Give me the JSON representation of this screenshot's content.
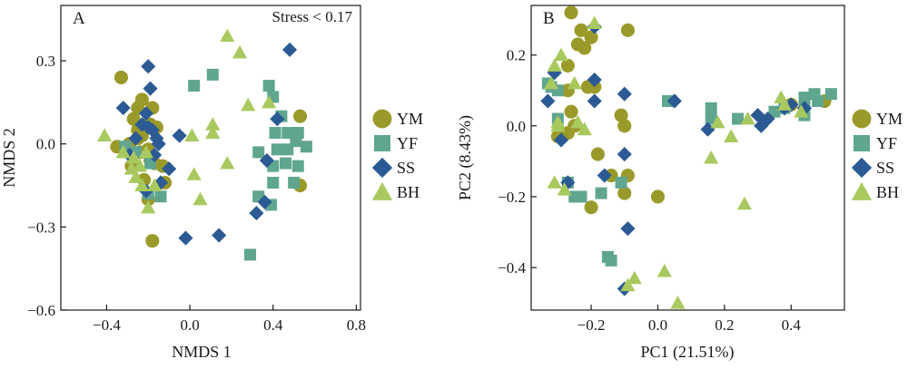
{
  "colors": {
    "YM": "#9a9a2a",
    "YF": "#5fa58f",
    "SS": "#2c5a94",
    "BH": "#a8c95e"
  },
  "legend": [
    "YM",
    "YF",
    "SS",
    "BH"
  ],
  "chart_data": [
    {
      "type": "scatter",
      "panel_label": "A",
      "annotation": "Stress < 0.17",
      "xlabel": "NMDS 1",
      "ylabel": "NMDS 2",
      "xlim": [
        -0.62,
        0.82
      ],
      "ylim": [
        -0.6,
        0.5
      ],
      "xticks": [
        -0.4,
        0.0,
        0.4,
        0.8
      ],
      "xtick_labels": [
        "−0.4",
        "0.0",
        "0.4",
        "0.8"
      ],
      "yticks": [
        -0.6,
        -0.3,
        0.0,
        0.3
      ],
      "ytick_labels": [
        "−0.6",
        "−0.3",
        "0.0",
        "0.3"
      ],
      "legend_position": "right",
      "series": [
        {
          "name": "YM",
          "marker": "circle",
          "points": [
            [
              -0.33,
              0.24
            ],
            [
              -0.23,
              0.16
            ],
            [
              -0.18,
              0.13
            ],
            [
              -0.27,
              0.09
            ],
            [
              -0.25,
              0.05
            ],
            [
              -0.21,
              0.07
            ],
            [
              -0.19,
              0.07
            ],
            [
              -0.16,
              0.06
            ],
            [
              -0.23,
              0.03
            ],
            [
              -0.25,
              0.02
            ],
            [
              -0.29,
              0.0
            ],
            [
              -0.35,
              -0.01
            ],
            [
              -0.24,
              -0.03
            ],
            [
              -0.2,
              -0.02
            ],
            [
              -0.17,
              -0.07
            ],
            [
              -0.13,
              -0.08
            ],
            [
              -0.19,
              -0.06
            ],
            [
              -0.28,
              -0.08
            ],
            [
              -0.22,
              -0.13
            ],
            [
              -0.12,
              -0.14
            ],
            [
              -0.2,
              -0.2
            ],
            [
              -0.18,
              -0.35
            ],
            [
              0.53,
              0.1
            ],
            [
              0.53,
              -0.15
            ],
            [
              -0.25,
              0.13
            ]
          ]
        },
        {
          "name": "YF",
          "marker": "square",
          "points": [
            [
              0.02,
              0.21
            ],
            [
              0.11,
              0.25
            ],
            [
              0.38,
              0.21
            ],
            [
              0.4,
              0.17
            ],
            [
              0.44,
              0.1
            ],
            [
              0.41,
              0.04
            ],
            [
              0.47,
              0.04
            ],
            [
              0.52,
              0.04
            ],
            [
              0.51,
              0.01
            ],
            [
              0.56,
              -0.01
            ],
            [
              0.42,
              -0.02
            ],
            [
              0.47,
              -0.02
            ],
            [
              0.33,
              -0.03
            ],
            [
              0.4,
              -0.08
            ],
            [
              0.46,
              -0.07
            ],
            [
              0.52,
              -0.08
            ],
            [
              0.5,
              -0.14
            ],
            [
              0.4,
              -0.14
            ],
            [
              0.33,
              -0.19
            ],
            [
              0.39,
              -0.22
            ],
            [
              0.29,
              -0.4
            ],
            [
              -0.31,
              -0.01
            ],
            [
              -0.26,
              -0.03
            ],
            [
              -0.19,
              -0.07
            ],
            [
              -0.2,
              -0.18
            ],
            [
              -0.14,
              -0.19
            ]
          ]
        },
        {
          "name": "SS",
          "marker": "diamond",
          "points": [
            [
              -0.32,
              0.13
            ],
            [
              -0.2,
              0.28
            ],
            [
              -0.19,
              0.2
            ],
            [
              -0.21,
              0.11
            ],
            [
              -0.23,
              0.07
            ],
            [
              -0.2,
              0.06
            ],
            [
              -0.18,
              0.05
            ],
            [
              -0.16,
              0.02
            ],
            [
              -0.05,
              0.03
            ],
            [
              -0.29,
              -0.04
            ],
            [
              -0.14,
              -0.14
            ],
            [
              -0.15,
              0.0
            ],
            [
              -0.17,
              -0.04
            ],
            [
              -0.1,
              -0.09
            ],
            [
              -0.21,
              -0.17
            ],
            [
              0.48,
              0.34
            ],
            [
              0.42,
              0.09
            ],
            [
              0.37,
              -0.06
            ],
            [
              0.36,
              -0.21
            ],
            [
              0.32,
              -0.25
            ],
            [
              -0.02,
              -0.34
            ],
            [
              0.14,
              -0.33
            ],
            [
              -0.26,
              0.02
            ]
          ]
        },
        {
          "name": "BH",
          "marker": "triangle",
          "points": [
            [
              0.18,
              0.39
            ],
            [
              0.24,
              0.33
            ],
            [
              0.28,
              0.14
            ],
            [
              0.38,
              0.15
            ],
            [
              -0.41,
              0.03
            ],
            [
              -0.32,
              -0.03
            ],
            [
              -0.27,
              -0.05
            ],
            [
              -0.21,
              -0.03
            ],
            [
              -0.24,
              -0.08
            ],
            [
              -0.28,
              -0.09
            ],
            [
              -0.26,
              -0.12
            ],
            [
              -0.23,
              -0.15
            ],
            [
              -0.17,
              -0.15
            ],
            [
              -0.2,
              -0.23
            ],
            [
              0.05,
              -0.2
            ],
            [
              0.02,
              -0.11
            ],
            [
              0.11,
              0.07
            ],
            [
              0.11,
              0.04
            ],
            [
              0.18,
              -0.07
            ],
            [
              0.01,
              0.03
            ]
          ]
        }
      ]
    },
    {
      "type": "scatter",
      "panel_label": "B",
      "xlabel": "PC1 (21.51%)",
      "ylabel": "PC2 (8.43%)",
      "xlim": [
        -0.38,
        0.56
      ],
      "ylim": [
        -0.52,
        0.34
      ],
      "xticks": [
        -0.2,
        0.0,
        0.2,
        0.4
      ],
      "xtick_labels": [
        "−0.2",
        "0.0",
        "0.2",
        "0.4"
      ],
      "yticks": [
        -0.4,
        -0.2,
        0.0,
        0.2
      ],
      "ytick_labels": [
        "−0.4",
        "−0.2",
        "0.0",
        "0.2"
      ],
      "legend_position": "right",
      "series": [
        {
          "name": "YM",
          "marker": "circle",
          "points": [
            [
              -0.26,
              0.32
            ],
            [
              -0.23,
              0.27
            ],
            [
              -0.24,
              0.23
            ],
            [
              -0.27,
              0.17
            ],
            [
              -0.22,
              0.22
            ],
            [
              -0.2,
              0.25
            ],
            [
              -0.09,
              0.27
            ],
            [
              -0.19,
              0.11
            ],
            [
              -0.21,
              0.11
            ],
            [
              -0.3,
              -0.03
            ],
            [
              -0.27,
              -0.02
            ],
            [
              -0.26,
              0.04
            ],
            [
              -0.25,
              0.0
            ],
            [
              -0.18,
              -0.08
            ],
            [
              -0.11,
              0.03
            ],
            [
              -0.1,
              0.0
            ],
            [
              -0.09,
              -0.14
            ],
            [
              -0.14,
              -0.14
            ],
            [
              -0.1,
              -0.19
            ],
            [
              -0.2,
              -0.23
            ],
            [
              0.0,
              -0.2
            ],
            [
              0.5,
              0.07
            ],
            [
              0.4,
              0.06
            ],
            [
              -0.27,
              0.1
            ]
          ]
        },
        {
          "name": "YF",
          "marker": "square",
          "points": [
            [
              -0.33,
              0.12
            ],
            [
              -0.3,
              0.1
            ],
            [
              -0.3,
              0.02
            ],
            [
              -0.27,
              -0.16
            ],
            [
              -0.23,
              -0.2
            ],
            [
              -0.25,
              -0.2
            ],
            [
              -0.17,
              -0.19
            ],
            [
              -0.11,
              -0.16
            ],
            [
              -0.15,
              -0.37
            ],
            [
              -0.14,
              -0.38
            ],
            [
              0.04,
              0.07
            ],
            [
              0.16,
              0.02
            ],
            [
              0.24,
              0.02
            ],
            [
              0.16,
              0.05
            ],
            [
              0.35,
              0.04
            ],
            [
              0.38,
              0.05
            ],
            [
              0.44,
              0.08
            ],
            [
              0.47,
              0.09
            ],
            [
              0.48,
              0.07
            ],
            [
              0.44,
              0.05
            ],
            [
              0.52,
              0.09
            ],
            [
              0.44,
              0.03
            ],
            [
              0.03,
              0.07
            ],
            [
              -0.32,
              0.11
            ]
          ]
        },
        {
          "name": "SS",
          "marker": "diamond",
          "points": [
            [
              -0.31,
              0.15
            ],
            [
              -0.19,
              0.28
            ],
            [
              -0.19,
              0.13
            ],
            [
              -0.19,
              0.07
            ],
            [
              -0.33,
              0.07
            ],
            [
              -0.29,
              -0.04
            ],
            [
              -0.27,
              -0.16
            ],
            [
              -0.16,
              -0.14
            ],
            [
              -0.1,
              -0.08
            ],
            [
              -0.1,
              0.09
            ],
            [
              -0.09,
              -0.29
            ],
            [
              -0.1,
              -0.46
            ],
            [
              0.05,
              0.07
            ],
            [
              0.15,
              -0.01
            ],
            [
              0.3,
              0.03
            ],
            [
              0.33,
              0.02
            ],
            [
              0.38,
              0.05
            ],
            [
              0.4,
              0.06
            ],
            [
              0.44,
              0.05
            ],
            [
              0.31,
              0.0
            ]
          ]
        },
        {
          "name": "BH",
          "marker": "triangle",
          "points": [
            [
              -0.29,
              0.2
            ],
            [
              -0.31,
              0.17
            ],
            [
              -0.19,
              0.29
            ],
            [
              -0.25,
              0.12
            ],
            [
              -0.32,
              0.12
            ],
            [
              -0.3,
              0.01
            ],
            [
              -0.24,
              0.01
            ],
            [
              -0.3,
              0.0
            ],
            [
              -0.22,
              -0.01
            ],
            [
              -0.31,
              -0.16
            ],
            [
              -0.28,
              -0.18
            ],
            [
              -0.07,
              -0.43
            ],
            [
              -0.09,
              -0.45
            ],
            [
              0.02,
              -0.41
            ],
            [
              0.06,
              -0.5
            ],
            [
              0.16,
              -0.09
            ],
            [
              0.26,
              -0.22
            ],
            [
              0.22,
              -0.03
            ],
            [
              0.18,
              0.01
            ],
            [
              0.27,
              0.02
            ],
            [
              0.37,
              0.08
            ],
            [
              0.38,
              0.06
            ],
            [
              0.43,
              0.04
            ]
          ]
        }
      ]
    }
  ]
}
